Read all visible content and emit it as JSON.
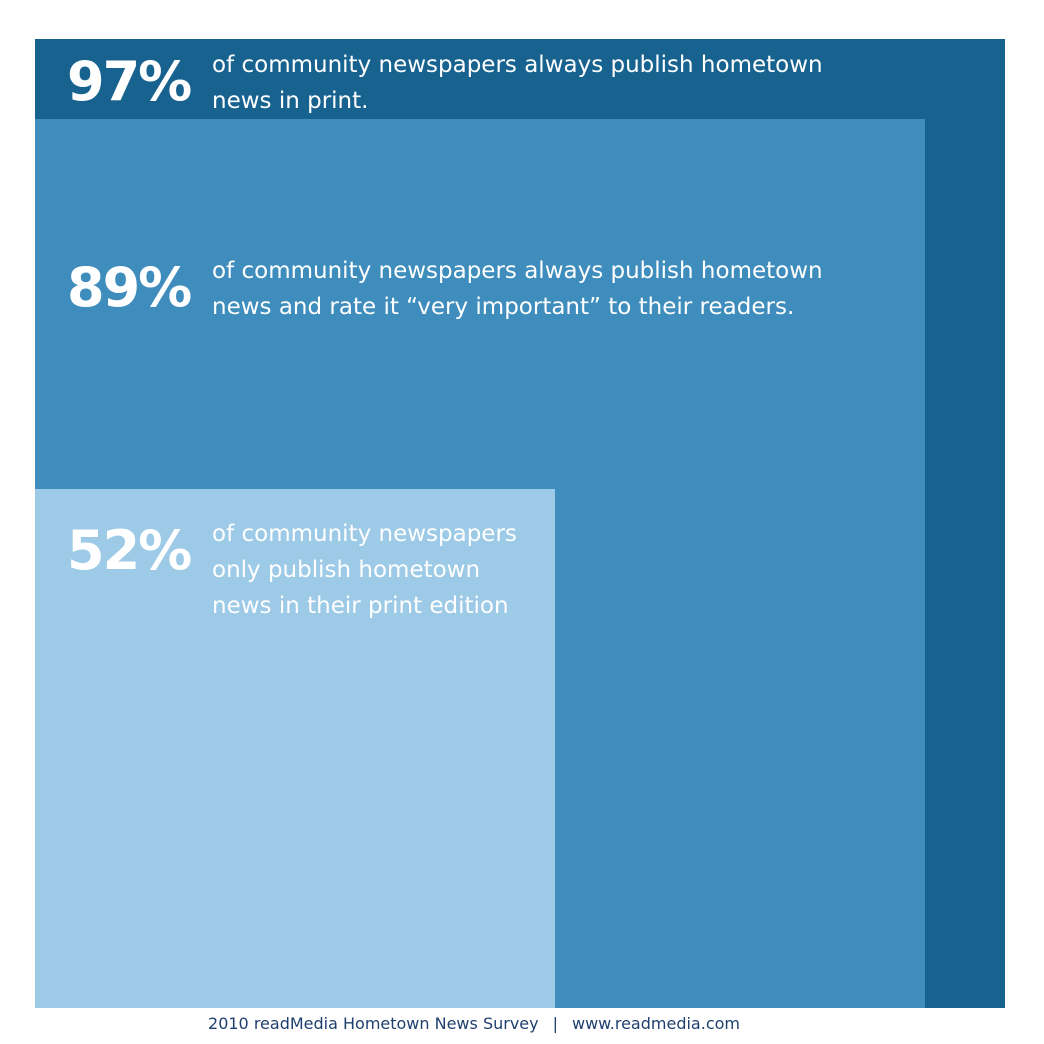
{
  "chart_data": {
    "type": "nested-square",
    "values": [
      97,
      89,
      52
    ],
    "items": [
      {
        "value_label": "97%",
        "lines": [
          "of community newspapers always publish hometown",
          "news in print."
        ],
        "color": "#17628f"
      },
      {
        "value_label": "89%",
        "lines": [
          "of community newspapers always publish hometown",
          "news and rate it “very important” to their readers."
        ],
        "color": "#3e8dbd"
      },
      {
        "value_label": "52%",
        "lines": [
          "of community newspapers",
          "only publish hometown",
          "news in their print edition"
        ],
        "color": "#9ccae7"
      }
    ]
  },
  "footer": {
    "source": "2010 readMedia Hometown News Survey",
    "separator": "|",
    "url": "www.readmedia.com"
  }
}
